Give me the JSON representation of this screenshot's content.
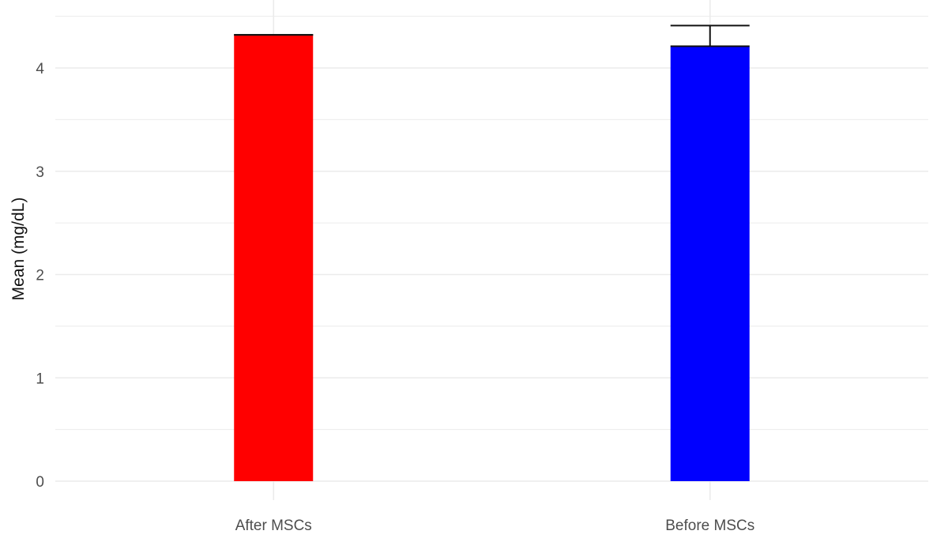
{
  "chart_data": {
    "type": "bar",
    "title": "",
    "xlabel": "",
    "ylabel": "Mean (mg/dL)",
    "categories": [
      "After MSCs",
      "Before MSCs"
    ],
    "values": [
      4.32,
      4.21
    ],
    "error_upper": [
      4.32,
      4.41
    ],
    "colors": [
      "#ff0000",
      "#0000ff"
    ],
    "ylim": [
      0,
      4.5
    ],
    "yticks": [
      0,
      1,
      2,
      3,
      4
    ],
    "grid": true,
    "legend": "none"
  }
}
